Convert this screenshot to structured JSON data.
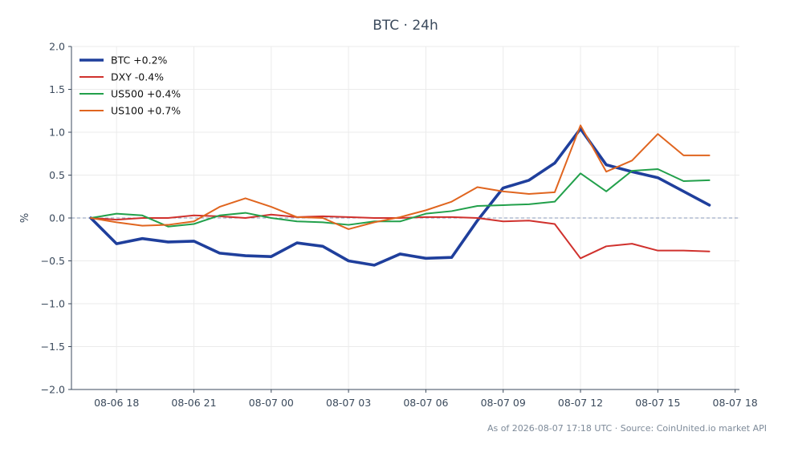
{
  "chart_data": {
    "type": "line",
    "title": "BTC · 24h",
    "xlabel": "",
    "ylabel": "%",
    "ylim": [
      -2.0,
      2.0
    ],
    "yticks": [
      "2.0",
      "1.5",
      "1.0",
      "0.5",
      "0.0",
      "−0.5",
      "−1.0",
      "−1.5",
      "−2.0"
    ],
    "ytick_values": [
      2.0,
      1.5,
      1.0,
      0.5,
      0.0,
      -0.5,
      -1.0,
      -1.5,
      -2.0
    ],
    "xlim": [
      "2026-08-06 16:15",
      "2026-08-07 18:10"
    ],
    "xticks": [
      "08-06 18",
      "08-06 21",
      "08-07 00",
      "08-07 03",
      "08-07 06",
      "08-07 09",
      "08-07 12",
      "08-07 15",
      "08-07 18"
    ],
    "xtick_values": [
      "2026-08-06 18:00",
      "2026-08-06 21:00",
      "2026-08-07 00:00",
      "2026-08-07 03:00",
      "2026-08-07 06:00",
      "2026-08-07 09:00",
      "2026-08-07 12:00",
      "2026-08-07 15:00",
      "2026-08-07 18:00"
    ],
    "x": [
      "2026-08-06 17:00",
      "2026-08-06 18:00",
      "2026-08-06 19:00",
      "2026-08-06 20:00",
      "2026-08-06 21:00",
      "2026-08-06 22:00",
      "2026-08-06 23:00",
      "2026-08-07 00:00",
      "2026-08-07 01:00",
      "2026-08-07 02:00",
      "2026-08-07 03:00",
      "2026-08-07 04:00",
      "2026-08-07 05:00",
      "2026-08-07 06:00",
      "2026-08-07 07:00",
      "2026-08-07 08:00",
      "2026-08-07 09:00",
      "2026-08-07 10:00",
      "2026-08-07 11:00",
      "2026-08-07 12:00",
      "2026-08-07 13:00",
      "2026-08-07 14:00",
      "2026-08-07 15:00",
      "2026-08-07 16:00",
      "2026-08-07 17:00"
    ],
    "series": [
      {
        "name": "BTC +0.2%",
        "color": "#1f3f9c",
        "width": 3.6,
        "values": [
          0.0,
          -0.3,
          -0.24,
          -0.28,
          -0.27,
          -0.41,
          -0.44,
          -0.45,
          -0.29,
          -0.33,
          -0.5,
          -0.55,
          -0.42,
          -0.47,
          -0.46,
          -0.03,
          0.35,
          0.44,
          0.64,
          1.04,
          0.62,
          0.54,
          0.47,
          0.31,
          0.15
        ]
      },
      {
        "name": "DXY -0.4%",
        "color": "#d0312d",
        "width": 2,
        "values": [
          0.0,
          -0.02,
          0.0,
          0.0,
          0.03,
          0.02,
          0.0,
          0.04,
          0.01,
          0.02,
          0.01,
          0.0,
          0.0,
          0.01,
          0.01,
          0.0,
          -0.04,
          -0.03,
          -0.07,
          -0.47,
          -0.33,
          -0.3,
          -0.38,
          -0.38,
          -0.39
        ]
      },
      {
        "name": "US500 +0.4%",
        "color": "#22a04b",
        "width": 2,
        "values": [
          0.0,
          0.05,
          0.03,
          -0.1,
          -0.07,
          0.03,
          0.06,
          0.0,
          -0.04,
          -0.05,
          -0.08,
          -0.04,
          -0.04,
          0.05,
          0.08,
          0.14,
          0.15,
          0.16,
          0.19,
          0.52,
          0.31,
          0.55,
          0.57,
          0.43,
          0.44
        ]
      },
      {
        "name": "US100 +0.7%",
        "color": "#e0651f",
        "width": 2,
        "values": [
          0.0,
          -0.05,
          -0.09,
          -0.08,
          -0.04,
          0.13,
          0.23,
          0.13,
          0.01,
          0.0,
          -0.13,
          -0.05,
          0.01,
          0.09,
          0.19,
          0.36,
          0.31,
          0.28,
          0.3,
          1.08,
          0.54,
          0.67,
          0.98,
          0.73,
          0.73
        ]
      }
    ],
    "baseline": {
      "value": 0.0,
      "color": "#8a98b8",
      "style": "dashed"
    },
    "grid": true,
    "legend": "top-left"
  },
  "footnote": "As of 2026-08-07 17:18 UTC · Source: CoinUnited.io market API"
}
